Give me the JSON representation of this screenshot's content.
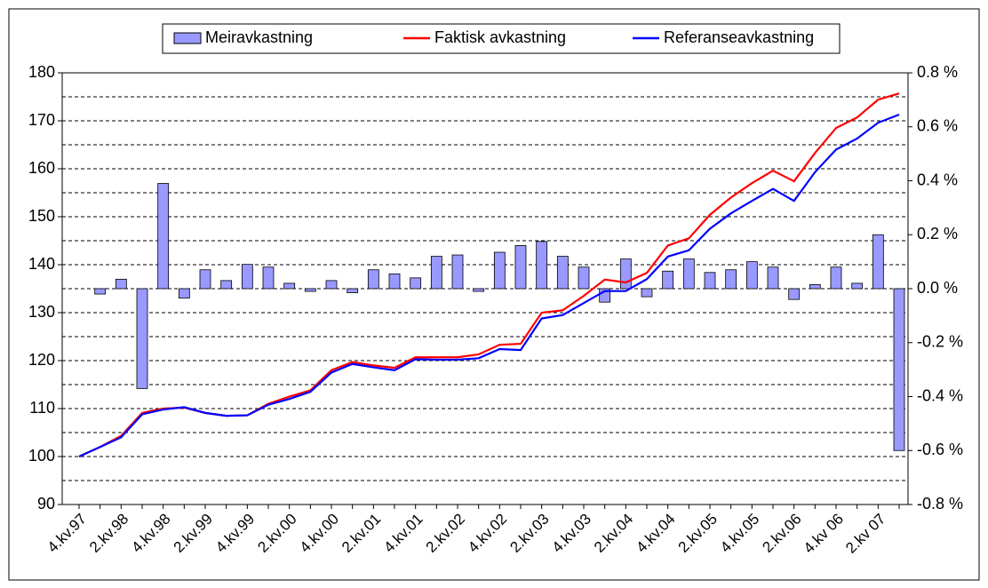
{
  "chart_data": {
    "type": "bar-line",
    "categories": [
      "4.kv.97",
      null,
      "2.kv.98",
      null,
      "4.kv.98",
      null,
      "2.kv.99",
      null,
      "4.kv.99",
      null,
      "2.kv.00",
      null,
      "4.kv.00",
      null,
      "2.kv.01",
      null,
      "4.kv.01",
      null,
      "2.kv.02",
      null,
      "4.kv.02",
      null,
      "2.kv.03",
      null,
      "4.kv.03",
      null,
      "2.kv.04",
      null,
      "4.kv.04",
      null,
      "2.kv.05",
      null,
      "4.kv.05",
      null,
      "2.kv.06",
      null,
      "4.kv 06",
      null,
      "2.kv 07",
      null
    ],
    "series": [
      {
        "name": "Meiravkastning",
        "type": "bar",
        "axis": "y2",
        "color": "#9999ff",
        "values": [
          null,
          -0.02,
          0.035,
          -0.37,
          0.39,
          -0.035,
          0.07,
          0.03,
          0.09,
          0.08,
          0.02,
          -0.01,
          0.03,
          -0.015,
          0.07,
          0.055,
          0.04,
          0.12,
          0.125,
          -0.01,
          0.135,
          0.16,
          0.175,
          0.12,
          0.08,
          -0.05,
          0.11,
          -0.03,
          0.065,
          0.11,
          0.06,
          0.07,
          0.1,
          0.08,
          -0.04,
          0.015,
          0.08,
          0.02,
          0.2,
          -0.6
        ]
      },
      {
        "name": "Faktisk avkastning",
        "type": "line",
        "color": "#ff0000",
        "values": [
          100,
          102,
          104.3,
          109.1,
          110,
          110.2,
          109.1,
          108.5,
          108.6,
          111,
          112.5,
          113.8,
          118,
          119.7,
          119,
          118.5,
          120.7,
          120.7,
          120.7,
          121.3,
          123.3,
          123.5,
          130,
          130.5,
          133.5,
          136.9,
          136.3,
          138.3,
          144,
          145.5,
          150.4,
          154,
          157,
          159.6,
          157.4,
          163.3,
          168.5,
          170.7,
          174.4,
          175.7
        ]
      },
      {
        "name": "Referanseavkastning",
        "type": "line",
        "color": "#0000ff",
        "values": [
          100,
          102,
          104,
          108.8,
          109.8,
          110.3,
          109.1,
          108.5,
          108.6,
          110.8,
          112,
          113.5,
          117.5,
          119.3,
          118.6,
          118,
          120.3,
          120.2,
          120.2,
          120.5,
          122.4,
          122.2,
          128.8,
          129.5,
          132,
          134.5,
          134.5,
          137,
          141.7,
          143,
          147.5,
          150.7,
          153.3,
          155.8,
          153.3,
          159.3,
          164,
          166.3,
          169.6,
          171.3
        ]
      }
    ],
    "ylim": [
      90,
      180
    ],
    "yticks": [
      90,
      100,
      110,
      120,
      130,
      140,
      150,
      160,
      170,
      180
    ],
    "y2lim": [
      -0.8,
      0.8
    ],
    "y2ticks": [
      {
        "value": -0.8,
        "label": "-0.8 %"
      },
      {
        "value": -0.6,
        "label": "-0.6 %"
      },
      {
        "value": -0.4,
        "label": "-0.4 %"
      },
      {
        "value": -0.2,
        "label": "-0.2 %"
      },
      {
        "value": 0,
        "label": "0.0 %"
      },
      {
        "value": 0.2,
        "label": "0.2 %"
      },
      {
        "value": 0.4,
        "label": "0.4 %"
      },
      {
        "value": 0.6,
        "label": "0.6 %"
      },
      {
        "value": 0.8,
        "label": "0.8 %"
      }
    ],
    "grid": true,
    "legend": "top"
  }
}
